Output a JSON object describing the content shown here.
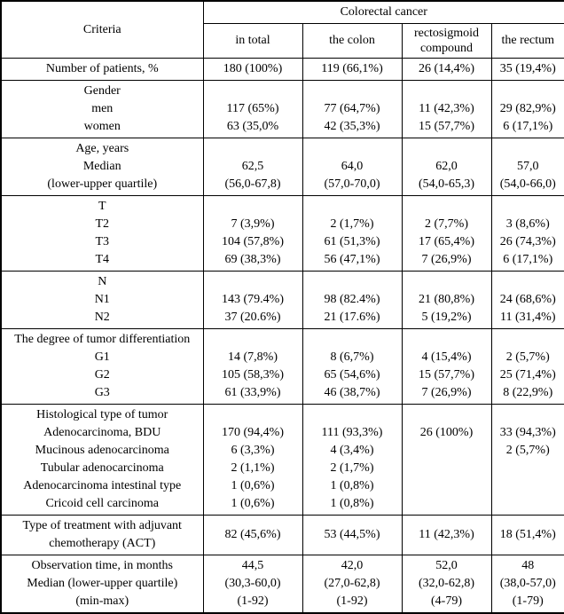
{
  "colors": {
    "border": "#000000",
    "text": "#000000",
    "background": "#ffffff"
  },
  "header": {
    "criteria_label": "Criteria",
    "group_label": "Colorectal cancer",
    "columns": [
      "in total",
      "the colon",
      "rectosigmoid compound",
      "the rectum"
    ]
  },
  "sections": [
    {
      "criteria": [
        "Number of patients, %"
      ],
      "values": [
        [
          "180 (100%)"
        ],
        [
          "119 (66,1%)"
        ],
        [
          "26 (14,4%)"
        ],
        [
          "35 (19,4%)"
        ]
      ]
    },
    {
      "criteria": [
        "Gender",
        "men",
        "women"
      ],
      "values": [
        [
          "",
          "117 (65%)",
          "63 (35,0%"
        ],
        [
          "",
          "77 (64,7%)",
          "42 (35,3%)"
        ],
        [
          "",
          "11 (42,3%)",
          "15 (57,7%)"
        ],
        [
          "",
          "29 (82,9%)",
          "6 (17,1%)"
        ]
      ]
    },
    {
      "criteria": [
        "Age, years",
        "Median",
        "(lower-upper quartile)"
      ],
      "values": [
        [
          "",
          "62,5",
          "(56,0-67,8)"
        ],
        [
          "",
          "64,0",
          "(57,0-70,0)"
        ],
        [
          "",
          "62,0",
          "(54,0-65,3)"
        ],
        [
          "",
          "57,0",
          "(54,0-66,0)"
        ]
      ]
    },
    {
      "criteria": [
        "T",
        "T2",
        "T3",
        "T4"
      ],
      "values": [
        [
          "",
          "7 (3,9%)",
          "104 (57,8%)",
          "69 (38,3%)"
        ],
        [
          "",
          "2 (1,7%)",
          "61 (51,3%)",
          "56 (47,1%)"
        ],
        [
          "",
          "2 (7,7%)",
          "17 (65,4%)",
          "7 (26,9%)"
        ],
        [
          "",
          "3 (8,6%)",
          "26 (74,3%)",
          "6 (17,1%)"
        ]
      ]
    },
    {
      "criteria": [
        "N",
        "N1",
        "N2"
      ],
      "values": [
        [
          "",
          "143 (79.4%)",
          "37 (20.6%)"
        ],
        [
          "",
          "98 (82.4%)",
          "21 (17.6%)"
        ],
        [
          "",
          "21 (80,8%)",
          "5 (19,2%)"
        ],
        [
          "",
          "24 (68,6%)",
          "11 (31,4%)"
        ]
      ]
    },
    {
      "criteria": [
        "The degree of tumor differentiation",
        "G1",
        "G2",
        "G3"
      ],
      "values": [
        [
          "",
          "14 (7,8%)",
          "105 (58,3%)",
          "61 (33,9%)"
        ],
        [
          "",
          "8 (6,7%)",
          "65 (54,6%)",
          "46 (38,7%)"
        ],
        [
          "",
          "4 (15,4%)",
          "15 (57,7%)",
          "7 (26,9%)"
        ],
        [
          "",
          "2 (5,7%)",
          "25 (71,4%)",
          "8 (22,9%)"
        ]
      ]
    },
    {
      "criteria": [
        "Histological type of tumor",
        "Adenocarcinoma, BDU",
        "Mucinous adenocarcinoma",
        "Tubular adenocarcinoma",
        "Adenocarcinoma intestinal type",
        "Cricoid cell carcinoma"
      ],
      "values": [
        [
          "",
          "170 (94,4%)",
          "6 (3,3%)",
          "2 (1,1%)",
          "1 (0,6%)",
          "1 (0,6%)"
        ],
        [
          "",
          "111 (93,3%)",
          "4 (3,4%)",
          "2 (1,7%)",
          "1 (0,8%)",
          "1 (0,8%)"
        ],
        [
          "",
          "26 (100%)",
          "",
          "",
          "",
          ""
        ],
        [
          "",
          "33 (94,3%)",
          "2 (5,7%)",
          "",
          "",
          ""
        ]
      ]
    },
    {
      "criteria": [
        "Type of treatment with adjuvant chemotherapy (ACT)"
      ],
      "values": [
        [
          "82 (45,6%)"
        ],
        [
          "53 (44,5%)"
        ],
        [
          "11 (42,3%)"
        ],
        [
          "18 (51,4%)"
        ]
      ]
    },
    {
      "criteria": [
        "Observation time, in months",
        "Median (lower-upper quartile)",
        "(min-max)"
      ],
      "values": [
        [
          "44,5",
          "(30,3-60,0)",
          "(1-92)"
        ],
        [
          "42,0",
          "(27,0-62,8)",
          "(1-92)"
        ],
        [
          "52,0",
          "(32,0-62,8)",
          "(4-79)"
        ],
        [
          "48",
          "(38,0-57,0)",
          "(1-79)"
        ]
      ]
    }
  ]
}
